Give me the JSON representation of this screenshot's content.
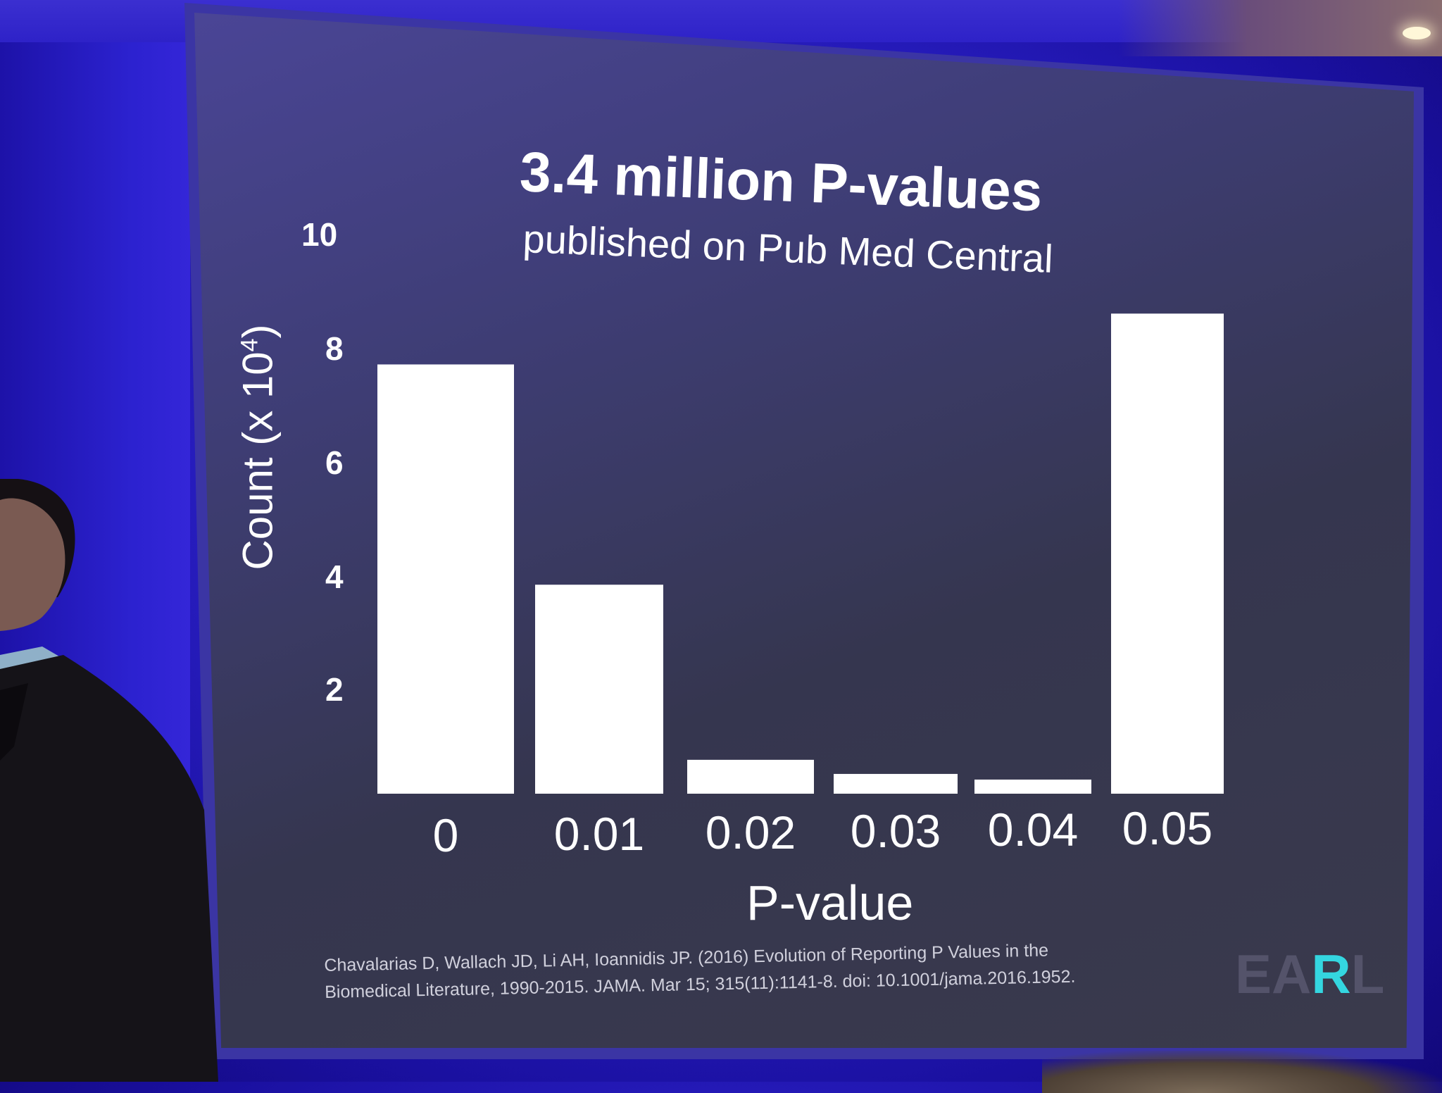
{
  "slide": {
    "title": "3.4 million P-values",
    "subtitle": "published on Pub Med Central",
    "citation_line1": "Chavalarias D, Wallach JD, Li AH, Ioannidis JP. (2016) Evolution of Reporting P Values in the",
    "citation_line2": "Biomedical Literature, 1990-2015. JAMA. Mar 15; 315(11):1141-8. doi: 10.1001/jama.2016.1952.",
    "logo": {
      "part1": "EA",
      "part2": "R",
      "part3": "L",
      "accent_color": "#34d6e0"
    }
  },
  "chart_data": {
    "type": "bar",
    "categories": [
      "0",
      "0.01",
      "0.02",
      "0.03",
      "0.04",
      "0.05"
    ],
    "values": [
      7.6,
      3.7,
      0.6,
      0.35,
      0.25,
      8.5
    ],
    "xlabel": "P-value",
    "ylabel": "Count (x 10",
    "ylabel_exponent": "4",
    "ylabel_suffix": ")",
    "yticks": [
      "2",
      "4",
      "6",
      "8",
      "10"
    ],
    "ylim": [
      0,
      10
    ],
    "grid": false,
    "bar_color": "#ffffff"
  }
}
